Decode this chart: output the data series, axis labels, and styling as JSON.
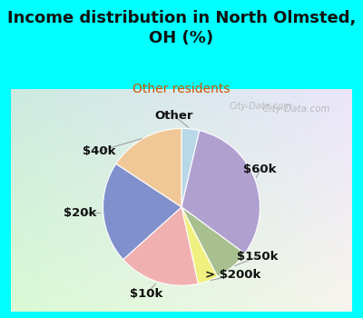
{
  "title": "Income distribution in North Olmsted,\nOH (%)",
  "subtitle": "Other residents",
  "title_color": "#111111",
  "subtitle_color": "#cc5500",
  "bg_cyan": "#00ffff",
  "watermark": "City-Data.com",
  "slices": [
    {
      "label": "Other",
      "value": 3.5,
      "color": "#b8d8e8"
    },
    {
      "label": "$60k",
      "value": 30.0,
      "color": "#b0a0d0"
    },
    {
      "label": "$150k",
      "value": 7.0,
      "color": "#a8c090"
    },
    {
      "label": "> $200k",
      "value": 4.0,
      "color": "#f0f080"
    },
    {
      "label": "$10k",
      "value": 16.0,
      "color": "#f0b0b0"
    },
    {
      "label": "$20k",
      "value": 20.0,
      "color": "#8090cc"
    },
    {
      "label": "$40k",
      "value": 15.0,
      "color": "#f0c898"
    }
  ],
  "start_angle": 90,
  "label_fontsize": 9.5
}
